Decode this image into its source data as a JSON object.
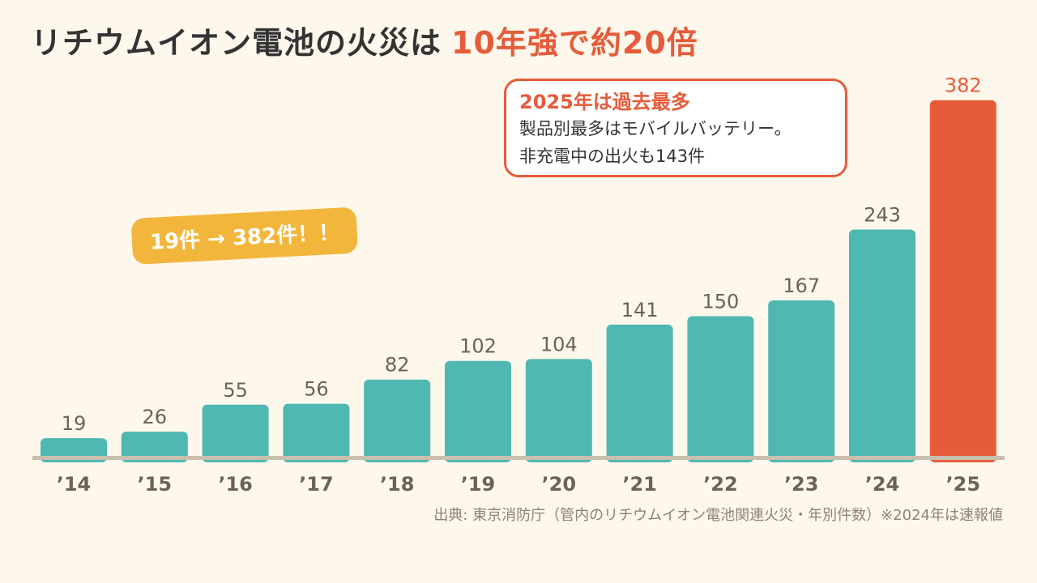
{
  "header": {
    "title_main": "リチウムイオン電池の火災は",
    "title_accent": "10年強で約20倍"
  },
  "callout": {
    "title": "2025年は過去最多",
    "line1": "製品別最多はモバイルバッテリー。",
    "line2": "非充電中の出火も143件"
  },
  "badge": {
    "text": "19件 → 382件！！"
  },
  "source": {
    "text": "出典: 東京消防庁（管内のリチウムイオン電池関連火災・年別件数）※2024年は速報値"
  },
  "colors": {
    "bar": "#4fb8b0",
    "highlight_bar": "#e65c3a",
    "value_label": "#6b6258",
    "highlight_label": "#e65c3a",
    "axis": "#c9bfae"
  },
  "chart_data": {
    "type": "bar",
    "title": "",
    "xlabel": "",
    "ylabel": "",
    "categories": [
      "’14",
      "’15",
      "’16",
      "’17",
      "’18",
      "’19",
      "’20",
      "’21",
      "’22",
      "’23",
      "’24",
      "’25"
    ],
    "values": [
      19,
      26,
      55,
      56,
      82,
      102,
      104,
      141,
      150,
      167,
      243,
      382
    ],
    "highlight_index": 11,
    "ylim": [
      0,
      400
    ],
    "grid": false
  }
}
